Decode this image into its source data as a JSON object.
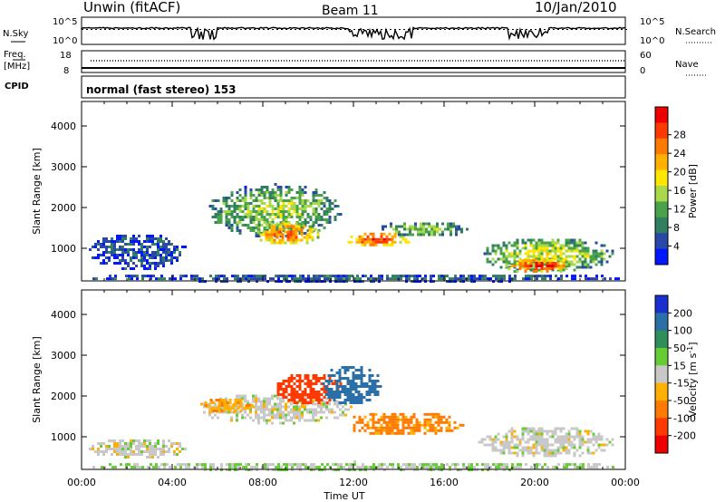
{
  "header": {
    "station": "Unwin (fitACF)",
    "beam": "Beam 11",
    "date": "10/Jan/2010"
  },
  "nsky_panel": {
    "left_label": "N.Sky",
    "right_label": "N.Search",
    "left_ticks": [
      "10^5",
      "10^0"
    ],
    "right_ticks": [
      "10^5",
      "10^0"
    ]
  },
  "freq_panel": {
    "left_label_1": "Freq.",
    "left_label_2": "[MHz]",
    "right_label": "Nave",
    "left_ticks": [
      "18",
      "8"
    ],
    "right_ticks": [
      "60",
      "0"
    ]
  },
  "cpid": {
    "label": "CPID",
    "text": "normal (fast stereo) 153"
  },
  "chart_data": [
    {
      "type": "heatmap",
      "name": "power",
      "ylabel": "Slant Range [km]",
      "ylim": [
        200,
        4600
      ],
      "yticks": [
        "1000",
        "2000",
        "3000",
        "4000"
      ],
      "xlim": [
        0,
        24
      ],
      "colorbar": {
        "label": "Power [dB]",
        "ticks": [
          "4",
          "8",
          "12",
          "16",
          "20",
          "24",
          "28"
        ],
        "colors": [
          "#0018ff",
          "#2a48a8",
          "#2f7f60",
          "#4aa34a",
          "#a9d94a",
          "#ffe600",
          "#ffb000",
          "#ff7a00",
          "#ff3a00",
          "#ee0000"
        ]
      },
      "regions": [
        {
          "t0": 0.2,
          "t1": 4.6,
          "r0": 500,
          "r1": 1400,
          "level": 0.18
        },
        {
          "t0": 5.5,
          "t1": 11.5,
          "r0": 1300,
          "r1": 2600,
          "level": 0.45
        },
        {
          "t0": 7.5,
          "t1": 10.5,
          "r0": 1100,
          "r1": 1700,
          "level": 0.8
        },
        {
          "t0": 11.5,
          "t1": 14.5,
          "r0": 1050,
          "r1": 1450,
          "level": 0.85
        },
        {
          "t0": 13.0,
          "t1": 17.0,
          "r0": 1300,
          "r1": 1700,
          "level": 0.4
        },
        {
          "t0": 17.5,
          "t1": 23.5,
          "r0": 450,
          "r1": 1300,
          "level": 0.5
        },
        {
          "t0": 18.7,
          "t1": 21.5,
          "r0": 400,
          "r1": 800,
          "level": 0.92
        },
        {
          "t0": 0.0,
          "t1": 24.0,
          "r0": 200,
          "r1": 420,
          "level": 0.2
        }
      ]
    },
    {
      "type": "heatmap",
      "name": "velocity",
      "ylabel": "Slant Range [km]",
      "xlabel": "Time UT",
      "ylim": [
        200,
        4600
      ],
      "yticks": [
        "1000",
        "2000",
        "3000",
        "4000"
      ],
      "xlim": [
        0,
        24
      ],
      "xticks": [
        "00:00",
        "04:00",
        "08:00",
        "12:00",
        "16:00",
        "20:00",
        "00:00"
      ],
      "colorbar": {
        "label": "Velocity [m s",
        "label_superscript": "-1",
        "label_close": "]",
        "ticks": [
          "200",
          "100",
          "50",
          "15",
          "-15",
          "-50",
          "-100",
          "-200"
        ],
        "colors": [
          "#1a2fd0",
          "#2a6fa8",
          "#2f8f5a",
          "#66cc33",
          "#c8c8c8",
          "#ffb000",
          "#ff7a00",
          "#ff3a00",
          "#ee0000"
        ]
      },
      "regions": [
        {
          "t0": 0.2,
          "t1": 4.6,
          "r0": 500,
          "r1": 1000,
          "vel": 0
        },
        {
          "t0": 5.0,
          "t1": 12.0,
          "r0": 1350,
          "r1": 2100,
          "vel": 0
        },
        {
          "t0": 8.5,
          "t1": 11.5,
          "r0": 1800,
          "r1": 2600,
          "vel": -180
        },
        {
          "t0": 10.5,
          "t1": 13.2,
          "r0": 1800,
          "r1": 2800,
          "vel": 150
        },
        {
          "t0": 5.3,
          "t1": 7.5,
          "r0": 1600,
          "r1": 2000,
          "vel": -40
        },
        {
          "t0": 11.5,
          "t1": 16.8,
          "r0": 1050,
          "r1": 1650,
          "vel": -60
        },
        {
          "t0": 17.5,
          "t1": 23.5,
          "r0": 500,
          "r1": 1300,
          "vel": 0
        },
        {
          "t0": 0.0,
          "t1": 24.0,
          "r0": 200,
          "r1": 420,
          "vel": 30
        }
      ]
    }
  ]
}
